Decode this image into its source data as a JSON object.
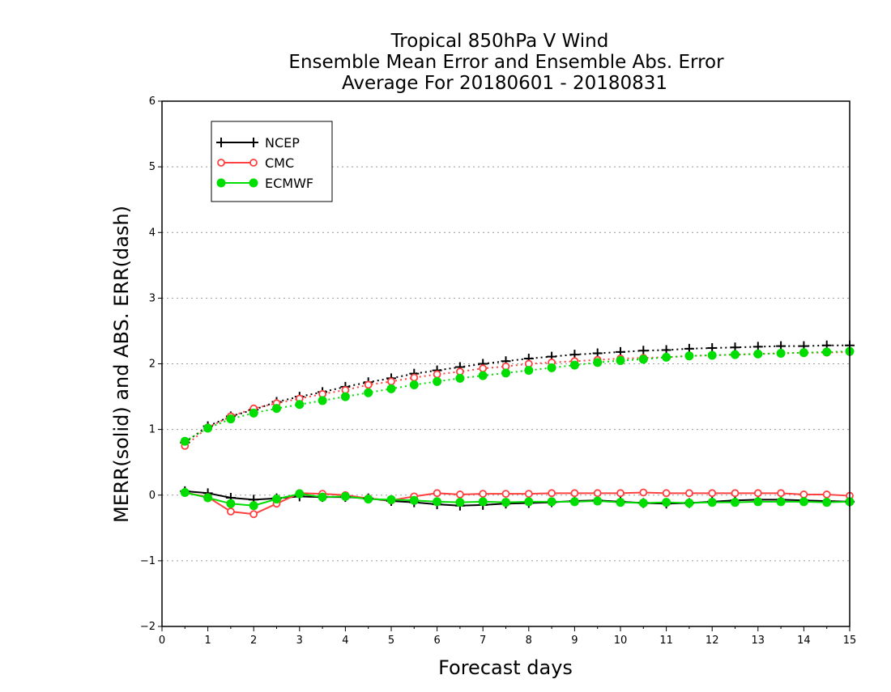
{
  "chart_data": {
    "type": "line",
    "title_lines": [
      "Tropical 850hPa V Wind",
      "Ensemble Mean Error and Ensemble Abs. Error",
      "Average For 20180601 - 20180831"
    ],
    "xlabel": "Forecast days",
    "ylabel": "MERR(solid) and ABS. ERR(dash)",
    "xlim": [
      0,
      15
    ],
    "ylim": [
      -2,
      6
    ],
    "x_ticks": [
      "0",
      "1",
      "2",
      "3",
      "4",
      "5",
      "6",
      "7",
      "8",
      "9",
      "10",
      "11",
      "12",
      "13",
      "14",
      "15"
    ],
    "y_ticks": [
      "−2",
      "−1",
      "0",
      "1",
      "2",
      "3",
      "4",
      "5",
      "6"
    ],
    "y_tick_values": [
      -2,
      -1,
      0,
      1,
      2,
      3,
      4,
      5,
      6
    ],
    "grid": "horizontal dotted",
    "legend_position": "top-left",
    "x": [
      0.5,
      1,
      1.5,
      2,
      2.5,
      3,
      3.5,
      4,
      4.5,
      5,
      5.5,
      6,
      6.5,
      7,
      7.5,
      8,
      8.5,
      9,
      9.5,
      10,
      10.5,
      11,
      11.5,
      12,
      12.5,
      13,
      13.5,
      14,
      14.5,
      15
    ],
    "series": [
      {
        "name": "NCEP",
        "color": "#000000",
        "marker": "plus",
        "merr": [
          0.06,
          0.03,
          -0.04,
          -0.07,
          -0.05,
          -0.02,
          -0.03,
          -0.03,
          -0.05,
          -0.09,
          -0.11,
          -0.14,
          -0.16,
          -0.15,
          -0.13,
          -0.12,
          -0.11,
          -0.09,
          -0.08,
          -0.1,
          -0.12,
          -0.13,
          -0.12,
          -0.1,
          -0.08,
          -0.07,
          -0.07,
          -0.08,
          -0.09,
          -0.1
        ],
        "abs_err": [
          0.8,
          1.05,
          1.2,
          1.3,
          1.42,
          1.5,
          1.57,
          1.65,
          1.72,
          1.78,
          1.85,
          1.9,
          1.95,
          2.0,
          2.04,
          2.08,
          2.11,
          2.14,
          2.16,
          2.18,
          2.2,
          2.21,
          2.23,
          2.24,
          2.25,
          2.26,
          2.27,
          2.27,
          2.28,
          2.28
        ]
      },
      {
        "name": "CMC",
        "color": "#ff4040",
        "marker": "open-circle",
        "merr": [
          0.04,
          -0.03,
          -0.25,
          -0.29,
          -0.13,
          0.03,
          0.02,
          0.0,
          -0.05,
          -0.08,
          -0.02,
          0.03,
          0.01,
          0.02,
          0.02,
          0.02,
          0.03,
          0.03,
          0.03,
          0.03,
          0.04,
          0.03,
          0.03,
          0.03,
          0.03,
          0.03,
          0.03,
          0.01,
          0.01,
          -0.01
        ],
        "abs_err": [
          0.75,
          1.03,
          1.2,
          1.32,
          1.4,
          1.47,
          1.54,
          1.6,
          1.68,
          1.73,
          1.79,
          1.84,
          1.88,
          1.93,
          1.96,
          2.0,
          2.02,
          2.04,
          2.06,
          2.08,
          2.09,
          2.1,
          2.12,
          2.13,
          2.14,
          2.15,
          2.16,
          2.17,
          2.17,
          2.18
        ]
      },
      {
        "name": "ECMWF",
        "color": "#00dd00",
        "marker": "filled-circle",
        "merr": [
          0.04,
          -0.04,
          -0.13,
          -0.16,
          -0.06,
          0.02,
          -0.03,
          -0.02,
          -0.06,
          -0.07,
          -0.08,
          -0.1,
          -0.11,
          -0.1,
          -0.11,
          -0.1,
          -0.1,
          -0.1,
          -0.09,
          -0.11,
          -0.12,
          -0.11,
          -0.12,
          -0.11,
          -0.11,
          -0.1,
          -0.1,
          -0.1,
          -0.11,
          -0.1
        ],
        "abs_err": [
          0.82,
          1.02,
          1.16,
          1.25,
          1.32,
          1.38,
          1.44,
          1.5,
          1.56,
          1.62,
          1.68,
          1.73,
          1.78,
          1.82,
          1.86,
          1.9,
          1.94,
          1.98,
          2.02,
          2.05,
          2.07,
          2.1,
          2.12,
          2.13,
          2.14,
          2.15,
          2.16,
          2.17,
          2.18,
          2.19
        ]
      }
    ]
  }
}
